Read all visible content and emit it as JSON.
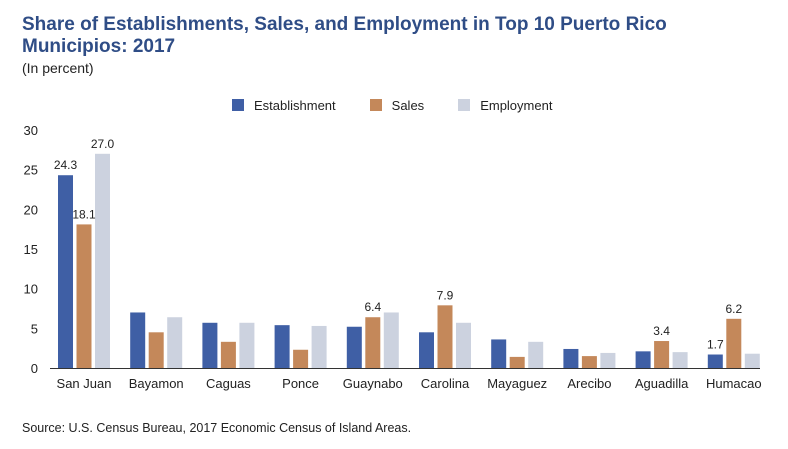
{
  "chart_data": {
    "type": "bar",
    "title": "Share of Establishments, Sales, and Employment in Top 10 Puerto Rico Municipios: 2017",
    "subtitle": "(In percent)",
    "categories": [
      "San Juan",
      "Bayamon",
      "Caguas",
      "Ponce",
      "Guaynabo",
      "Carolina",
      "Mayaguez",
      "Arecibo",
      "Aguadilla",
      "Humacao"
    ],
    "series": [
      {
        "name": "Establishment",
        "color": "#3f5fa5",
        "values": [
          24.3,
          7.0,
          5.7,
          5.4,
          5.2,
          4.5,
          3.6,
          2.4,
          2.1,
          1.7
        ]
      },
      {
        "name": "Sales",
        "color": "#c4885a",
        "values": [
          18.1,
          4.5,
          3.3,
          2.3,
          6.4,
          7.9,
          1.4,
          1.5,
          3.4,
          6.2
        ]
      },
      {
        "name": "Employment",
        "color": "#ccd2df",
        "values": [
          27.0,
          6.4,
          5.7,
          5.3,
          7.0,
          5.7,
          3.3,
          1.9,
          2.0,
          1.8
        ]
      }
    ],
    "data_labels": [
      {
        "series": 0,
        "index": 0,
        "text": "24.3"
      },
      {
        "series": 1,
        "index": 0,
        "text": "18.1"
      },
      {
        "series": 2,
        "index": 0,
        "text": "27.0"
      },
      {
        "series": 1,
        "index": 4,
        "text": "6.4"
      },
      {
        "series": 1,
        "index": 5,
        "text": "7.9"
      },
      {
        "series": 1,
        "index": 8,
        "text": "3.4"
      },
      {
        "series": 0,
        "index": 9,
        "text": "1.7"
      },
      {
        "series": 1,
        "index": 9,
        "text": "6.2"
      }
    ],
    "yticks": [
      "0",
      "5",
      "10",
      "15",
      "20",
      "25",
      "30"
    ],
    "ylim": [
      0,
      30
    ],
    "grid": false,
    "legend_position": "top"
  },
  "source": "Source: U.S. Census Bureau, 2017 Economic Census of Island Areas."
}
